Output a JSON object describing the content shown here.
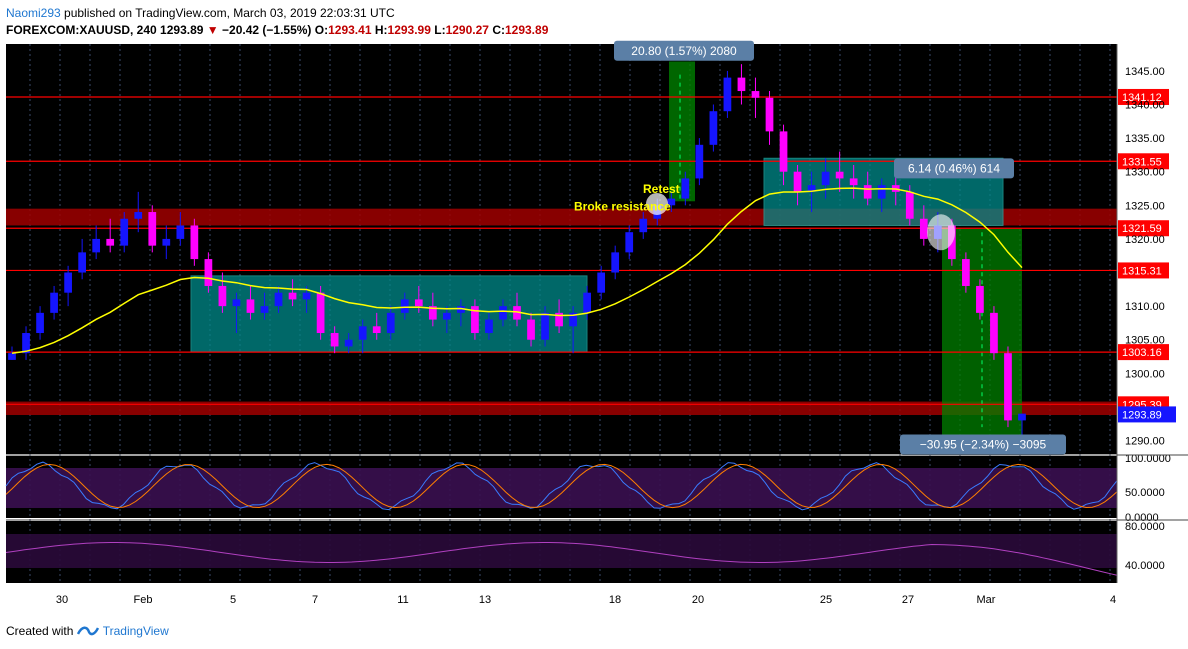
{
  "header": {
    "author": "Naomi293",
    "published_text": " published on TradingView.com, March 03, 2019 22:03:31 UTC",
    "symbol": "FOREXCOM:XAUUSD, 240",
    "last": "1293.89",
    "change": "−20.42 (−1.55%)",
    "open_label": "O:",
    "open": "1293.41",
    "high_label": "H:",
    "high": "1293.99",
    "low_label": "L:",
    "low": "1290.27",
    "close_label": "C:",
    "close": "1293.89"
  },
  "footer": {
    "created_with": "Created with",
    "brand": "TradingView"
  },
  "colors": {
    "bull": "#1515ff",
    "bear": "#ff00ff",
    "ema": "#ffff00",
    "level": "#ff0000",
    "zone": "#008b8b",
    "green": "#008000",
    "bg": "#000000"
  },
  "chart_data": {
    "type": "candlestick",
    "symbol": "FOREXCOM:XAUUSD",
    "timeframe": "240",
    "x_ticks": [
      "30",
      "Feb",
      "5",
      "7",
      "11",
      "13",
      "18",
      "20",
      "25",
      "27",
      "Mar",
      "4"
    ],
    "y_ticks": [
      "1345.00",
      "1340.00",
      "1335.00",
      "1330.00",
      "1325.00",
      "1320.00",
      "1310.00",
      "1305.00",
      "1300.00",
      "1290.00"
    ],
    "ylim": [
      1288,
      1349
    ],
    "price_levels": [
      1341.12,
      1331.55,
      1321.59,
      1315.31,
      1303.16,
      1295.39
    ],
    "price_level_labels": [
      "1341.12",
      "1331.55",
      "1321.59",
      "1315.31",
      "1303.16",
      "1295.39"
    ],
    "last_price_label": "1293.89",
    "resistance_zones": [
      {
        "from": 1322,
        "to": 1324.5
      },
      {
        "from": 1293.8,
        "to": 1295.8
      }
    ],
    "consolidation_boxes": [
      {
        "from_date": "Feb 4",
        "to_date": "Feb 15",
        "low": 1303.2,
        "high": 1314.5
      },
      {
        "from_date": "Feb 21",
        "to_date": "Feb 27",
        "low": 1322,
        "high": 1332
      }
    ],
    "measure_boxes": [
      {
        "label": "20.80 (1.57%) 2080",
        "from": 1325.6,
        "to": 1346.4
      },
      {
        "label": "6.14 (0.46%) 614",
        "from": 1323.5,
        "to": 1329.6
      },
      {
        "label": "−30.95 (−2.34%) −3095",
        "from": 1321.5,
        "to": 1290.6
      }
    ],
    "annotations": [
      "Broke resistance",
      "Retest"
    ],
    "candles": [
      [
        1302,
        1304,
        1302,
        1303
      ],
      [
        1303,
        1307,
        1302,
        1306
      ],
      [
        1306,
        1310,
        1305,
        1309
      ],
      [
        1309,
        1313,
        1308,
        1312
      ],
      [
        1312,
        1316,
        1310,
        1315
      ],
      [
        1315,
        1320,
        1314,
        1318
      ],
      [
        1318,
        1322,
        1317,
        1320
      ],
      [
        1320,
        1323,
        1318,
        1319
      ],
      [
        1319,
        1324,
        1318,
        1323
      ],
      [
        1323,
        1327,
        1321,
        1324
      ],
      [
        1324,
        1325,
        1318,
        1319
      ],
      [
        1319,
        1322,
        1317,
        1320
      ],
      [
        1320,
        1324,
        1319,
        1322
      ],
      [
        1322,
        1323,
        1316,
        1317
      ],
      [
        1317,
        1318,
        1312,
        1313
      ],
      [
        1313,
        1315,
        1309,
        1310
      ],
      [
        1310,
        1312,
        1306,
        1311
      ],
      [
        1311,
        1313,
        1308,
        1309
      ],
      [
        1309,
        1312,
        1308,
        1310
      ],
      [
        1310,
        1313,
        1309,
        1312
      ],
      [
        1312,
        1314,
        1310,
        1311
      ],
      [
        1311,
        1313,
        1309,
        1312
      ],
      [
        1312,
        1313,
        1305,
        1306
      ],
      [
        1306,
        1307,
        1303,
        1304
      ],
      [
        1304,
        1306,
        1303,
        1305
      ],
      [
        1305,
        1308,
        1303,
        1307
      ],
      [
        1307,
        1309,
        1305,
        1306
      ],
      [
        1306,
        1310,
        1305,
        1309
      ],
      [
        1309,
        1312,
        1308,
        1311
      ],
      [
        1311,
        1313,
        1309,
        1310
      ],
      [
        1310,
        1312,
        1307,
        1308
      ],
      [
        1308,
        1310,
        1306,
        1309
      ],
      [
        1309,
        1311,
        1307,
        1310
      ],
      [
        1310,
        1311,
        1305,
        1306
      ],
      [
        1306,
        1309,
        1305,
        1308
      ],
      [
        1308,
        1311,
        1307,
        1310
      ],
      [
        1310,
        1312,
        1307,
        1308
      ],
      [
        1308,
        1309,
        1304,
        1305
      ],
      [
        1305,
        1310,
        1304,
        1309
      ],
      [
        1309,
        1311,
        1306,
        1307
      ],
      [
        1307,
        1310,
        1303,
        1309
      ],
      [
        1309,
        1313,
        1308,
        1312
      ],
      [
        1312,
        1316,
        1311,
        1315
      ],
      [
        1315,
        1319,
        1314,
        1318
      ],
      [
        1318,
        1322,
        1317,
        1321
      ],
      [
        1321,
        1324,
        1320,
        1323
      ],
      [
        1323,
        1326,
        1322,
        1325
      ],
      [
        1325,
        1327,
        1324,
        1326
      ],
      [
        1326,
        1330,
        1325,
        1329
      ],
      [
        1329,
        1335,
        1328,
        1334
      ],
      [
        1334,
        1340,
        1333,
        1339
      ],
      [
        1339,
        1345,
        1338,
        1344
      ],
      [
        1344,
        1346,
        1340,
        1342
      ],
      [
        1342,
        1344,
        1338,
        1341
      ],
      [
        1341,
        1342,
        1334,
        1336
      ],
      [
        1336,
        1337,
        1328,
        1330
      ],
      [
        1330,
        1331,
        1325,
        1327
      ],
      [
        1327,
        1330,
        1324,
        1328
      ],
      [
        1328,
        1332,
        1326,
        1330
      ],
      [
        1330,
        1333,
        1327,
        1329
      ],
      [
        1329,
        1331,
        1326,
        1328
      ],
      [
        1328,
        1330,
        1325,
        1326
      ],
      [
        1326,
        1329,
        1324,
        1328
      ],
      [
        1328,
        1330,
        1325,
        1327
      ],
      [
        1327,
        1328,
        1322,
        1323
      ],
      [
        1323,
        1325,
        1319,
        1320
      ],
      [
        1320,
        1324,
        1318,
        1322
      ],
      [
        1322,
        1323,
        1316,
        1317
      ],
      [
        1317,
        1318,
        1312,
        1313
      ],
      [
        1313,
        1314,
        1308,
        1309
      ],
      [
        1309,
        1310,
        1302,
        1303
      ],
      [
        1303,
        1304,
        1292,
        1293
      ],
      [
        1293,
        1294,
        1290,
        1294
      ]
    ]
  }
}
